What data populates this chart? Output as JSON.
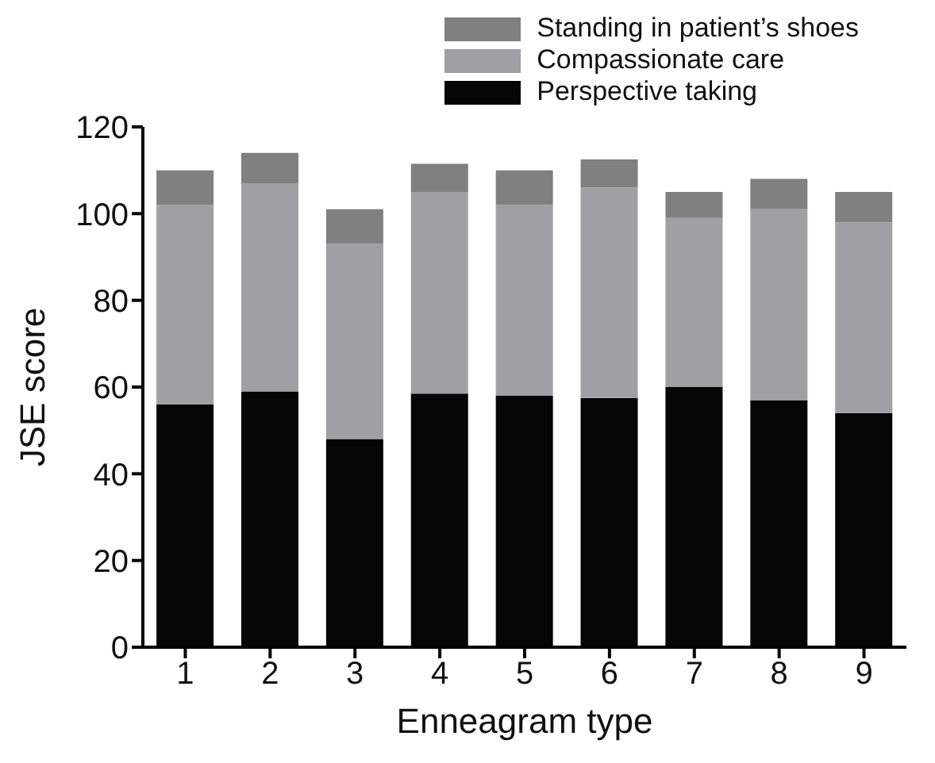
{
  "chart_data": {
    "type": "bar",
    "stacked": true,
    "xlabel": "Enneagram type",
    "ylabel": "JSE score",
    "categories": [
      "1",
      "2",
      "3",
      "4",
      "5",
      "6",
      "7",
      "8",
      "9"
    ],
    "series": [
      {
        "name": "Perspective taking",
        "color": "#050505",
        "values": [
          56,
          59,
          48,
          58.5,
          58,
          57.5,
          60,
          57,
          54
        ]
      },
      {
        "name": "Compassionate care",
        "color": "#a0a0a4",
        "values": [
          46,
          48,
          45,
          46.5,
          44,
          48.5,
          39,
          44,
          44
        ]
      },
      {
        "name": "Standing in patient’s shoes",
        "color": "#808080",
        "values": [
          8,
          7,
          8,
          6.5,
          8,
          6.5,
          6,
          7,
          7
        ]
      }
    ],
    "ylim": [
      0,
      120
    ],
    "yticks": [
      0,
      20,
      40,
      60,
      80,
      100,
      120
    ],
    "grid": false,
    "legend": "top right"
  }
}
